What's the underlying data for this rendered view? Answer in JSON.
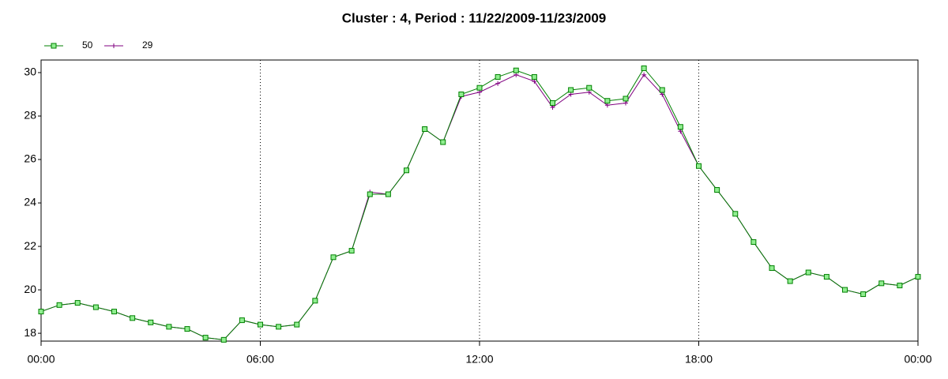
{
  "chart_data": {
    "type": "line",
    "title": "Cluster : 4, Period : 11/22/2009-11/23/2009",
    "x": [
      0,
      0.5,
      1,
      1.5,
      2,
      2.5,
      3,
      3.5,
      4,
      4.5,
      5,
      5.5,
      6,
      6.5,
      7,
      7.5,
      8,
      8.5,
      9,
      9.5,
      10,
      10.5,
      11,
      11.5,
      12,
      12.5,
      13,
      13.5,
      14,
      14.5,
      15,
      15.5,
      16,
      16.5,
      17,
      17.5,
      18,
      18.5,
      19,
      19.5,
      20,
      20.5,
      21,
      21.5,
      22,
      22.5,
      23,
      23.5,
      24
    ],
    "series": [
      {
        "name": "50",
        "color": "#008000",
        "marker_color": "#90ee90",
        "values": [
          19.0,
          19.3,
          19.4,
          19.2,
          19.0,
          18.7,
          18.5,
          18.3,
          18.2,
          17.8,
          17.7,
          18.6,
          18.4,
          18.3,
          18.4,
          19.5,
          21.5,
          21.8,
          24.4,
          24.4,
          25.5,
          27.4,
          26.8,
          29.0,
          29.3,
          29.8,
          30.1,
          29.8,
          28.6,
          29.2,
          29.3,
          28.7,
          28.8,
          30.2,
          29.2,
          27.5,
          25.7,
          24.6,
          23.5,
          22.2,
          21.0,
          20.4,
          20.8,
          20.6,
          20.0,
          19.8,
          20.3,
          20.2,
          20.6
        ]
      },
      {
        "name": "29",
        "color": "#800080",
        "values": [
          19.0,
          19.3,
          19.4,
          19.2,
          19.0,
          18.7,
          18.5,
          18.3,
          18.2,
          17.8,
          17.7,
          18.6,
          18.4,
          18.3,
          18.4,
          19.5,
          21.5,
          21.8,
          24.5,
          24.4,
          25.5,
          27.4,
          26.8,
          28.9,
          29.1,
          29.5,
          29.9,
          29.6,
          28.4,
          29.0,
          29.1,
          28.5,
          28.6,
          29.9,
          29.0,
          27.3,
          25.7,
          24.6,
          23.5,
          22.2,
          21.0,
          20.4,
          20.8,
          20.6,
          20.0,
          19.8,
          20.3,
          20.2,
          20.6
        ]
      }
    ],
    "xlim": [
      0,
      24
    ],
    "xticks": [
      {
        "value": 0,
        "label": "00:00"
      },
      {
        "value": 6,
        "label": "06:00"
      },
      {
        "value": 12,
        "label": "12:00"
      },
      {
        "value": 18,
        "label": "18:00"
      },
      {
        "value": 24,
        "label": "00:00"
      }
    ],
    "ylim": [
      17.64,
      30.58
    ],
    "yticks": [
      18,
      20,
      22,
      24,
      26,
      28,
      30
    ],
    "grid": true
  }
}
